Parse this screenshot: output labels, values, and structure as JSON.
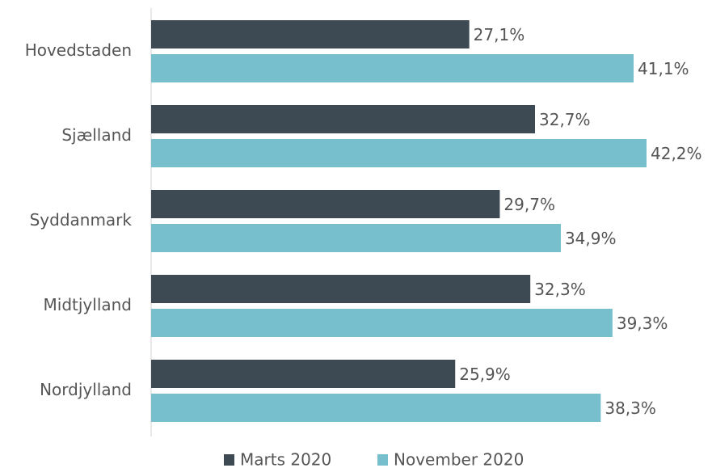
{
  "chart_data": {
    "type": "hbar",
    "categories": [
      "Hovedstaden",
      "Sjælland",
      "Syddanmark",
      "Midtjylland",
      "Nordjylland"
    ],
    "series": [
      {
        "name": "Marts 2020",
        "color": "#3d4a53",
        "values": [
          27.1,
          32.7,
          29.7,
          32.3,
          25.9
        ],
        "value_labels": [
          "27,1%",
          "32,7%",
          "29,7%",
          "32,3%",
          "25,9%"
        ]
      },
      {
        "name": "November 2020",
        "color": "#78bfcd",
        "values": [
          41.1,
          42.2,
          34.9,
          39.3,
          38.3
        ],
        "value_labels": [
          "41,1%",
          "42,2%",
          "34,9%",
          "39,3%",
          "38,3%"
        ]
      }
    ],
    "legend": "bottom"
  }
}
